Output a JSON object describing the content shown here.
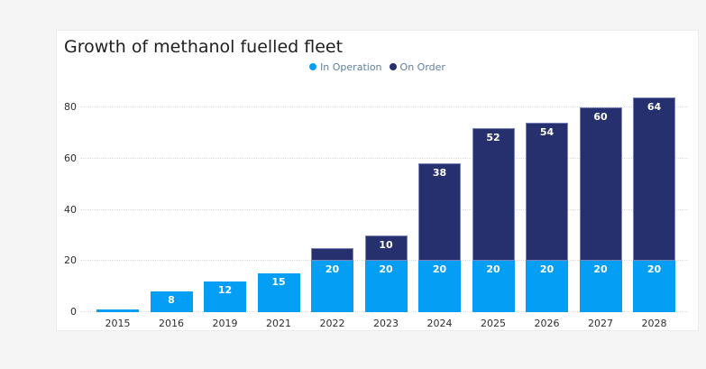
{
  "page": {
    "background": "#f5f5f6"
  },
  "card": {
    "background": "#ffffff"
  },
  "chart": {
    "title": "Growth of methanol fuelled fleet"
  },
  "chart_data": {
    "type": "bar",
    "stacked": true,
    "title": "Growth of methanol fuelled fleet",
    "categories": [
      "2015",
      "2016",
      "2019",
      "2021",
      "2022",
      "2023",
      "2024",
      "2025",
      "2026",
      "2027",
      "2028"
    ],
    "series": [
      {
        "name": "In Operation",
        "color": "#049ff5",
        "values": [
          1,
          8,
          12,
          15,
          20,
          20,
          20,
          20,
          20,
          20,
          20
        ]
      },
      {
        "name": "On Order",
        "color": "#26306f",
        "values": [
          0,
          0,
          0,
          0,
          5,
          10,
          38,
          52,
          54,
          60,
          64
        ]
      }
    ],
    "totals": [
      1,
      8,
      12,
      15,
      25,
      30,
      58,
      72,
      74,
      80,
      84
    ],
    "visible_data_labels": {
      "In Operation": [
        null,
        "8",
        "12",
        "15",
        "20",
        "20",
        "20",
        "20",
        "20",
        "20",
        "20"
      ],
      "On Order": [
        null,
        null,
        null,
        null,
        null,
        "10",
        "38",
        "52",
        "54",
        "60",
        "64"
      ]
    },
    "xlabel": "",
    "ylabel": "",
    "ymax": 80,
    "yticks": [
      0,
      20,
      40,
      60,
      80
    ],
    "grid": "horizontal dotted",
    "legend_position": "top-center",
    "label_style": "white bold inside top of segment",
    "colors": {
      "in_operation": "#049ff5",
      "on_order": "#26306f",
      "on_order_border": "#7b84b8",
      "legend_text": "#60809f",
      "axis_text": "#2e2e2e",
      "gridline": "#dcdcdf"
    }
  }
}
